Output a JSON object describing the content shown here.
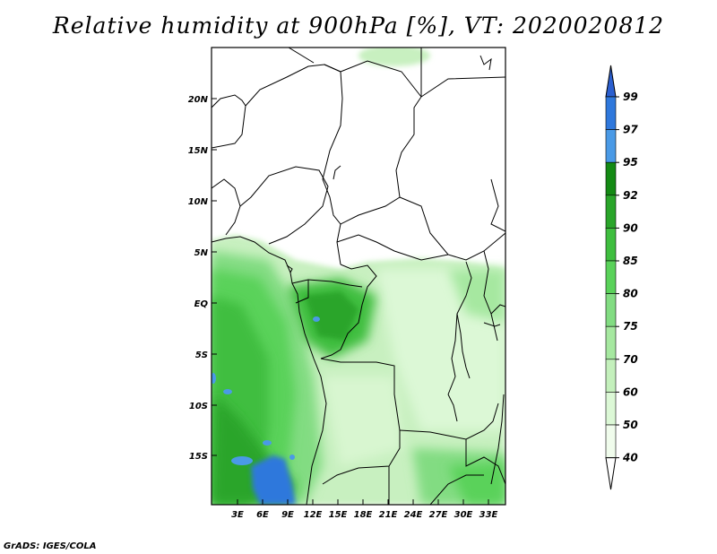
{
  "title": "Relative humidity at 900hPa [%], VT: 2020020812",
  "credit": "GrADS: IGES/COLA",
  "map": {
    "lat_labels": [
      "20N",
      "15N",
      "10N",
      "5N",
      "EQ",
      "5S",
      "10S",
      "15S"
    ],
    "lon_labels": [
      "3E",
      "6E",
      "9E",
      "12E",
      "15E",
      "18E",
      "21E",
      "24E",
      "27E",
      "30E",
      "33E"
    ]
  },
  "colorbar": {
    "labels": [
      "99",
      "97",
      "95",
      "92",
      "90",
      "85",
      "80",
      "75",
      "70",
      "60",
      "50",
      "40"
    ],
    "colors": {
      "99": "#2b5fd0",
      "97": "#2f78dc",
      "95": "#4a9ae6",
      "92": "#148a14",
      "90": "#2aa52a",
      "85": "#3fbe3f",
      "80": "#5ad25a",
      "75": "#82dc82",
      "70": "#a6e8a0",
      "60": "#c4f0bc",
      "50": "#dcf8d6",
      "40": "#f0fcec"
    }
  }
}
